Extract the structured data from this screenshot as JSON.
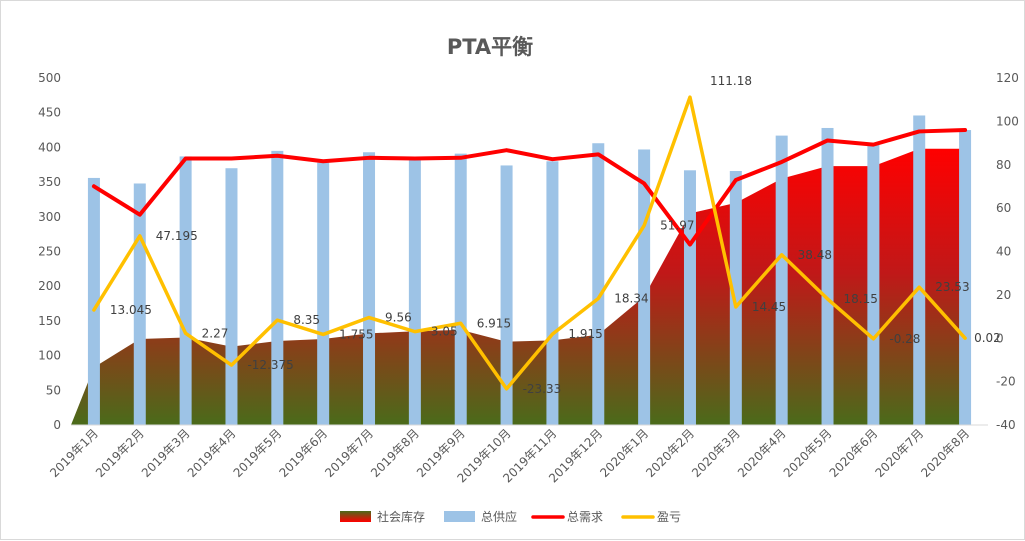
{
  "chart_data": {
    "type": "bar",
    "title": "PTA平衡",
    "categories": [
      "2019年1月",
      "2019年2月",
      "2019年3月",
      "2019年4月",
      "2019年5月",
      "2019年6月",
      "2019年7月",
      "2019年8月",
      "2019年9月",
      "2019年10月",
      "2019年11月",
      "2019年12月",
      "2020年1月",
      "2020年2月",
      "2020年3月",
      "2020年4月",
      "2020年5月",
      "2020年6月",
      "2020年7月",
      "2020年8月"
    ],
    "left_axis": {
      "min": 0,
      "max": 500,
      "ticks": [
        "0",
        "50",
        "100",
        "150",
        "200",
        "250",
        "300",
        "350",
        "400",
        "450",
        "500"
      ]
    },
    "right_axis": {
      "min": -40,
      "max": 120,
      "ticks": [
        "-40",
        "-20",
        "0",
        "20",
        "40",
        "60",
        "80",
        "100",
        "120"
      ]
    },
    "grid": false,
    "legend_position": "bottom",
    "series": [
      {
        "name": "社会库存",
        "type": "area",
        "axis": "left",
        "color_top": "#ff0000",
        "color_bottom": "#4a6b1a",
        "values": [
          83,
          124,
          126,
          113,
          121,
          124,
          132,
          135,
          137,
          120,
          122,
          130,
          185,
          305,
          320,
          355,
          373,
          373,
          398,
          398
        ]
      },
      {
        "name": "总供应",
        "type": "bar",
        "axis": "left",
        "color": "#9dc3e6",
        "values": [
          356,
          348,
          387,
          370,
          395,
          378,
          393,
          383,
          391,
          374,
          380,
          406,
          397,
          367,
          366,
          417,
          428,
          405,
          446,
          425
        ]
      },
      {
        "name": "总需求",
        "type": "line",
        "axis": "left",
        "color": "#ff0000",
        "values": [
          344,
          303,
          384,
          384,
          388,
          380,
          385,
          384,
          385,
          396,
          383,
          390,
          348,
          260,
          353,
          379,
          410,
          404,
          423,
          425
        ]
      },
      {
        "name": "盈亏",
        "type": "line",
        "axis": "right",
        "color": "#ffc000",
        "values": [
          13.045,
          47.195,
          2.27,
          -12.375,
          8.35,
          1.755,
          9.56,
          3.05,
          6.915,
          -23.33,
          1.915,
          18.34,
          51.97,
          111.18,
          14.45,
          38.48,
          18.15,
          -0.28,
          23.53,
          0.02
        ],
        "labels": [
          "13.045",
          "47.195",
          "2.27",
          "-12.375",
          "8.35",
          "1.755",
          "9.56",
          "3.05",
          "6.915",
          "-23.33",
          "1.915",
          "18.34",
          "51.97",
          "111.18",
          "14.45",
          "38.48",
          "18.15",
          "-0.28",
          "23.53",
          "0.02"
        ]
      }
    ]
  }
}
